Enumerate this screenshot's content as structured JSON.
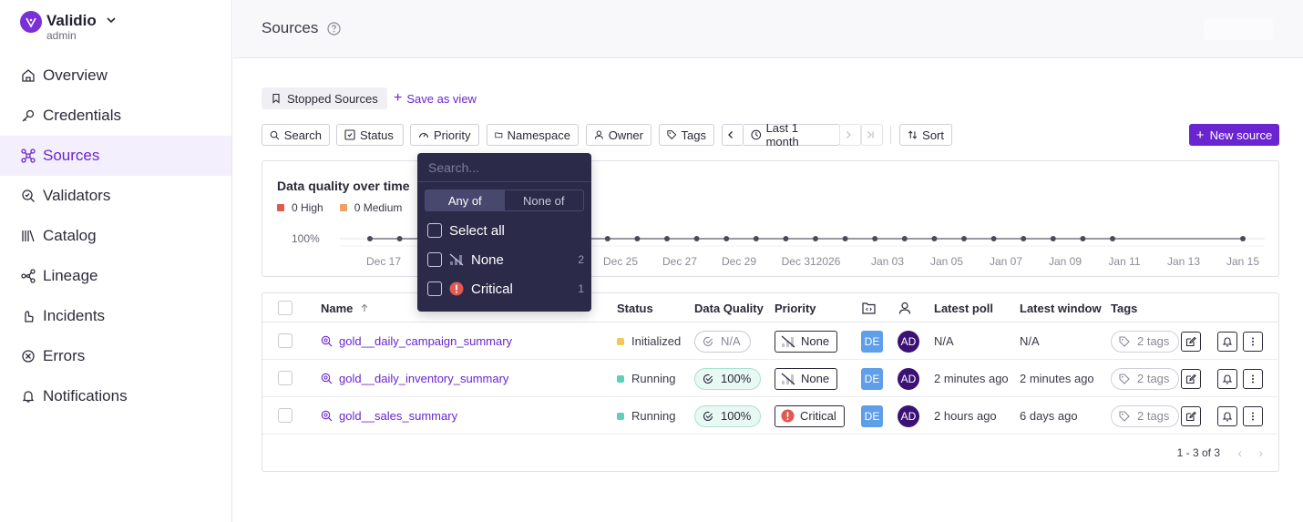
{
  "brand": {
    "name": "Validio",
    "workspace": "admin"
  },
  "nav": [
    {
      "label": "Overview",
      "icon": "home-icon"
    },
    {
      "label": "Credentials",
      "icon": "key-icon"
    },
    {
      "label": "Sources",
      "icon": "sources-icon",
      "active": true
    },
    {
      "label": "Validators",
      "icon": "validator-icon"
    },
    {
      "label": "Catalog",
      "icon": "catalog-icon"
    },
    {
      "label": "Lineage",
      "icon": "lineage-icon"
    },
    {
      "label": "Incidents",
      "icon": "incident-icon"
    },
    {
      "label": "Errors",
      "icon": "error-icon"
    },
    {
      "label": "Notifications",
      "icon": "bell-icon"
    }
  ],
  "header": {
    "title": "Sources"
  },
  "views": {
    "current": "Stopped Sources",
    "save_label": "Save as view"
  },
  "filters": {
    "search": "Search",
    "status": "Status",
    "priority": "Priority",
    "namespace": "Namespace",
    "owner": "Owner",
    "tags": "Tags",
    "time_range": "Last 1 month",
    "sort": "Sort",
    "new_source": "New source"
  },
  "priority_dropdown": {
    "search_placeholder": "Search...",
    "mode_any": "Any of",
    "mode_none": "None of",
    "select_all": "Select all",
    "options": [
      {
        "label": "None",
        "count": "2",
        "icon": "no-priority-icon"
      },
      {
        "label": "Critical",
        "count": "1",
        "icon": "critical-icon"
      }
    ]
  },
  "chart": {
    "title": "Data quality over time",
    "legend": [
      {
        "label": "0 High",
        "color": "#e05a4f"
      },
      {
        "label": "0 Medium",
        "color": "#f0a060"
      }
    ]
  },
  "chart_data": {
    "type": "line",
    "title": "Data quality over time",
    "y_tick": "100%",
    "x_ticks": [
      "Dec 17",
      "Dec 25",
      "Dec 27",
      "Dec 29",
      "Dec 312026",
      "Jan 03",
      "Jan 05",
      "Jan 07",
      "Jan 09",
      "Jan 11",
      "Jan 13",
      "Jan 15"
    ],
    "series": [
      {
        "name": "",
        "value": 100
      }
    ],
    "legend": [
      "0 High",
      "0 Medium"
    ],
    "grid": true
  },
  "table": {
    "columns": {
      "name": "Name",
      "status": "Status",
      "data_quality": "Data Quality",
      "priority": "Priority",
      "latest_poll": "Latest poll",
      "latest_window": "Latest window",
      "tags": "Tags"
    },
    "rows": [
      {
        "name": "gold__daily_campaign_summary",
        "status": "Initialized",
        "status_color": "#f0c85a",
        "dq": "N/A",
        "dq_good": false,
        "priority": "None",
        "priority_critical": false,
        "namespace": "DE",
        "owner": "AD",
        "latest_poll": "N/A",
        "latest_window": "N/A",
        "tags": "2 tags"
      },
      {
        "name": "gold__daily_inventory_summary",
        "status": "Running",
        "status_color": "#5fcfb7",
        "dq": "100%",
        "dq_good": true,
        "priority": "None",
        "priority_critical": false,
        "namespace": "DE",
        "owner": "AD",
        "latest_poll": "2 minutes ago",
        "latest_window": "2 minutes ago",
        "tags": "2 tags"
      },
      {
        "name": "gold__sales_summary",
        "status": "Running",
        "status_color": "#5fcfb7",
        "dq": "100%",
        "dq_good": true,
        "priority": "Critical",
        "priority_critical": true,
        "namespace": "DE",
        "owner": "AD",
        "latest_poll": "2 hours ago",
        "latest_window": "6 days ago",
        "tags": "2 tags"
      }
    ],
    "pagination": "1 - 3 of 3"
  }
}
